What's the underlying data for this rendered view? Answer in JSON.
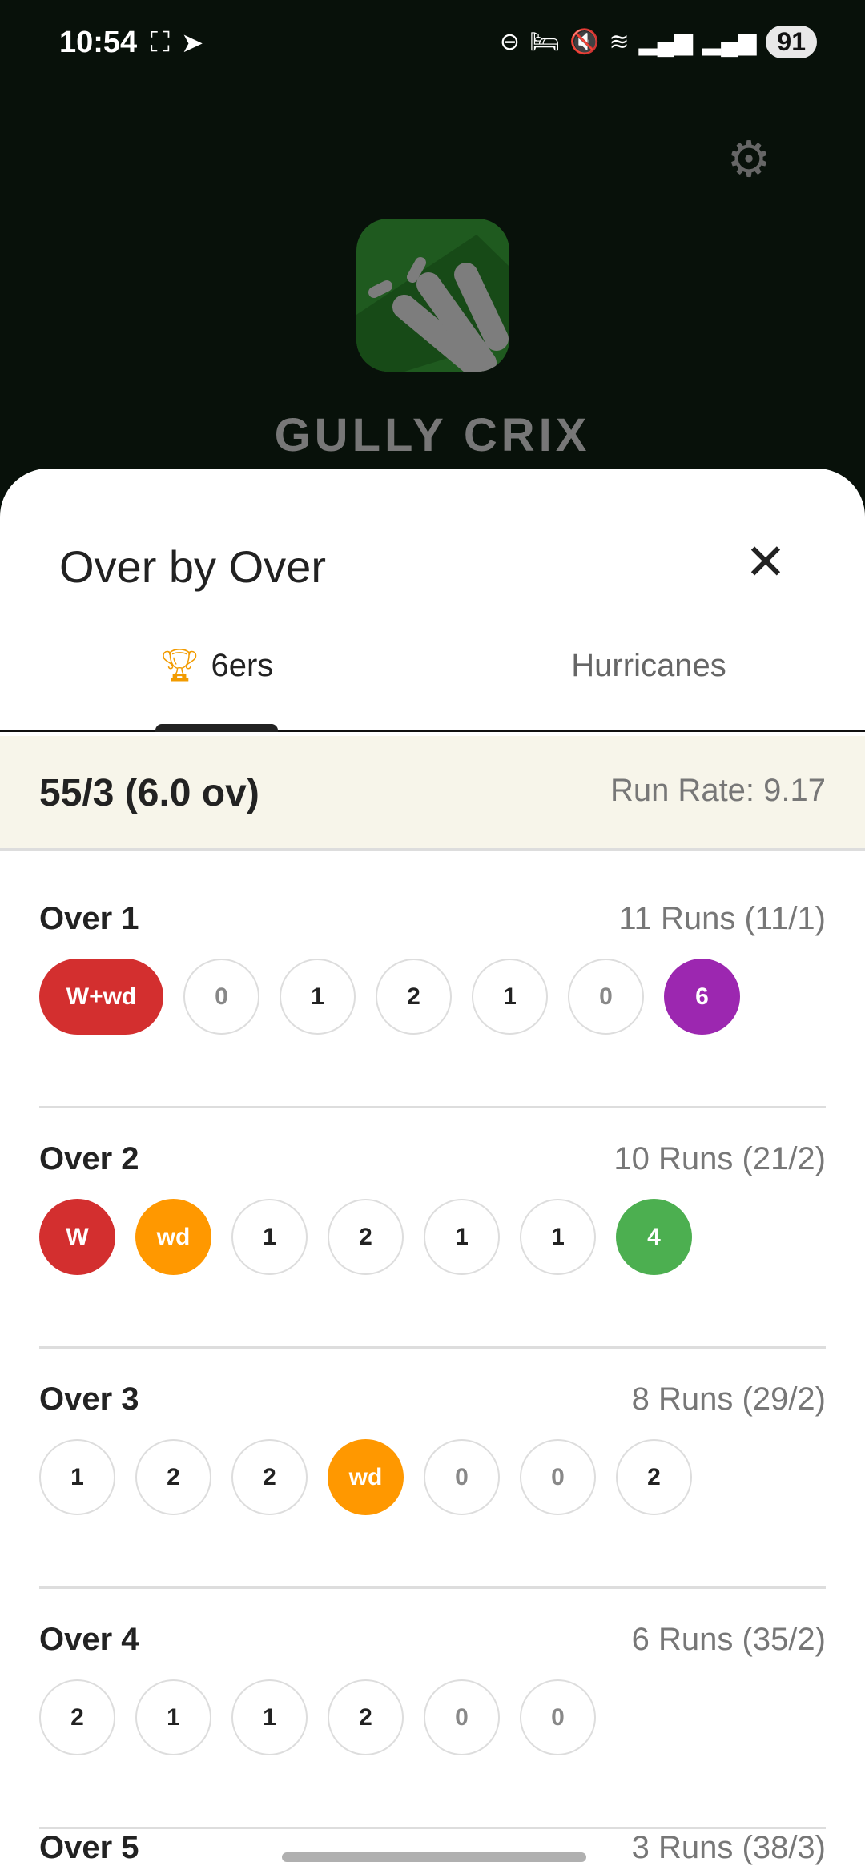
{
  "status_bar": {
    "time": "10:54",
    "battery": "91"
  },
  "app": {
    "brand": "GULLY CRIX"
  },
  "sheet": {
    "title": "Over by Over"
  },
  "tabs": [
    {
      "label": "6ers",
      "icon": "trophy-icon",
      "active": true
    },
    {
      "label": "Hurricanes",
      "active": false
    }
  ],
  "summary": {
    "score": "55/3 (6.0 ov)",
    "run_rate": "Run Rate: 9.17"
  },
  "colors": {
    "wicket": "#d32f2f",
    "wide": "#ff9800",
    "six": "#9c27b0",
    "four": "#4caf50"
  },
  "overs": [
    {
      "label": "Over 1",
      "runs": "11 Runs (11/1)",
      "balls": [
        "W+wd",
        "0",
        "1",
        "2",
        "1",
        "0",
        "6"
      ]
    },
    {
      "label": "Over 2",
      "runs": "10 Runs (21/2)",
      "balls": [
        "W",
        "wd",
        "1",
        "2",
        "1",
        "1",
        "4"
      ]
    },
    {
      "label": "Over 3",
      "runs": "8 Runs (29/2)",
      "balls": [
        "1",
        "2",
        "2",
        "wd",
        "0",
        "0",
        "2"
      ]
    },
    {
      "label": "Over 4",
      "runs": "6 Runs (35/2)",
      "balls": [
        "2",
        "1",
        "1",
        "2",
        "0",
        "0"
      ]
    },
    {
      "label": "Over 5",
      "runs": "3 Runs (38/3)",
      "balls": []
    }
  ]
}
